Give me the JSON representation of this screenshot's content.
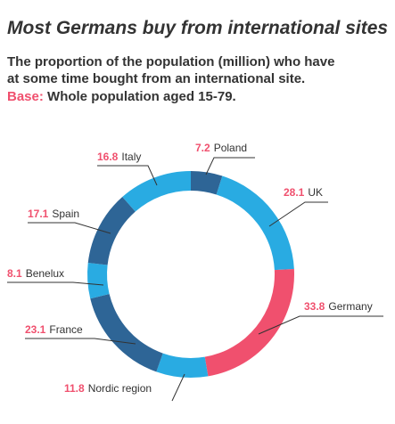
{
  "chart_data": {
    "type": "donut",
    "title": "Most Germans buy from international sites",
    "subtitle_lines": [
      "The proportion of the population (million) who have",
      "at some time bought from an international site."
    ],
    "base_label": "Base:",
    "base_text": "Whole population aged 15-79.",
    "categories": [
      "Poland",
      "UK",
      "Germany",
      "Nordic region",
      "France",
      "Benelux",
      "Spain",
      "Italy"
    ],
    "values": [
      7.2,
      28.1,
      33.8,
      11.8,
      23.1,
      8.1,
      17.1,
      16.8
    ],
    "colors": [
      "#2e6596",
      "#29abe2",
      "#f0506e",
      "#29abe2",
      "#2e6596",
      "#29abe2",
      "#2e6596",
      "#29abe2"
    ],
    "value_label_color": "#f0506e"
  }
}
